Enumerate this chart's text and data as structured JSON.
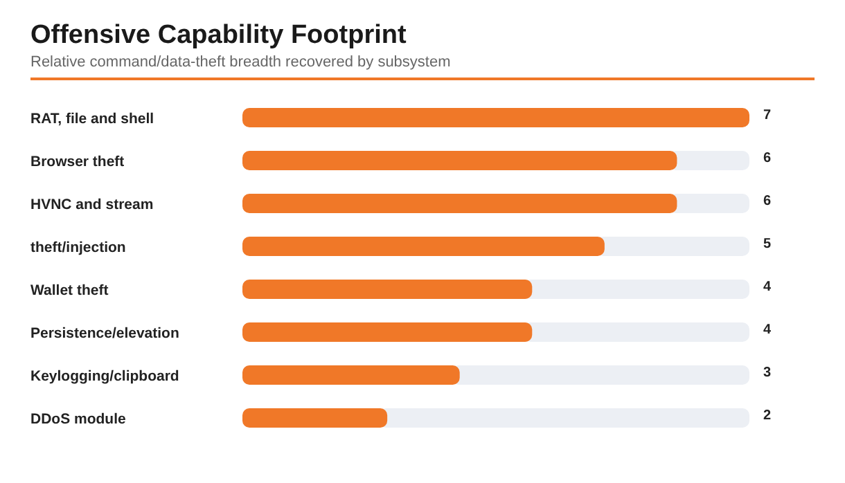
{
  "chart_data": {
    "type": "bar",
    "orientation": "horizontal",
    "title": "Offensive Capability Footprint",
    "subtitle": "Relative command/data-theft breadth recovered by subsystem",
    "categories": [
      "RAT, file and shell",
      "Browser theft",
      "HVNC and stream",
      "theft/injection",
      "Wallet theft",
      "Persistence/elevation",
      "Keylogging/clipboard",
      "DDoS module"
    ],
    "values": [
      7,
      6,
      6,
      5,
      4,
      4,
      3,
      2
    ],
    "color": "#f07828",
    "xlim": [
      0,
      7
    ],
    "tick_labels": "y",
    "data_labels": true
  }
}
